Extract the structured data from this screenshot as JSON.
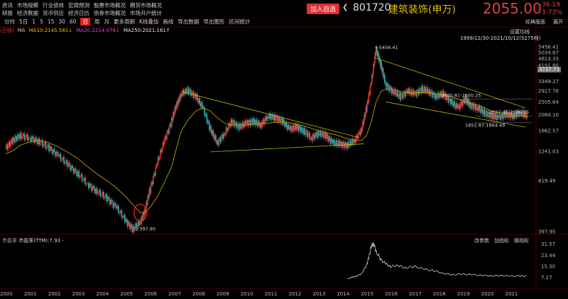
{
  "nav": {
    "row1": [
      "资讯",
      "市场规模",
      "行业绩效",
      "宏观预测",
      "股票市场概况",
      "期货市场概况"
    ],
    "row2": [
      "研报",
      "经济数据",
      "货币供应",
      "经济日历",
      "债券市场概况",
      "市场开户统计"
    ]
  },
  "toolbar": {
    "items": [
      "分时",
      "5日",
      "1",
      "5",
      "15",
      "30",
      "60",
      "日",
      "周",
      "月",
      "更多周期",
      "K线叠加",
      "画线",
      "导出数据",
      "导出图形",
      "区间统计"
    ],
    "selected": "日",
    "right": [
      "经典版面",
      "展开"
    ]
  },
  "header": {
    "add_label": "加入自选",
    "code": "801720",
    "name": "建筑装饰(申万)",
    "price": "2055.00",
    "change": "-36.19",
    "change_pct": "-1.73%",
    "arrow": "❮"
  },
  "ma": {
    "period_label": "(日线)",
    "ma": "MA",
    "ma10": "MA10:2145.581↓",
    "ma20": "MA20:2214.978↓",
    "ma250": "MA250:2021.161↑"
  },
  "panel": {
    "settings": "设置均线",
    "range": "1999/12/30-2021/10/12(5275根)",
    "current_tag": "3737.73",
    "sub_label": "市盈率",
    "sub_value": "市盈率(TTM):7.93 -",
    "sub_right": [
      "改参数",
      "加指标",
      "换指标"
    ]
  },
  "colors": {
    "up": "#e03030",
    "down": "#20b0b0",
    "ma_up": "#e8c000",
    "ma_lower": "#b8a000",
    "accent": "#e03030"
  },
  "chart_data": [
    {
      "type": "candlestick",
      "title": "801720 建筑装饰(申万)",
      "x_ticks": [
        "2000",
        "2001",
        "2002",
        "2003",
        "2004",
        "2005",
        "2006",
        "2007",
        "2008",
        "2009",
        "2010",
        "2011",
        "2012",
        "2013",
        "2014",
        "2015",
        "2016",
        "2017",
        "2018",
        "2019",
        "2020",
        "2021"
      ],
      "y_ticks": [
        5456.41,
        5034.87,
        4613.33,
        4191.8,
        3349.27,
        2927.78,
        2505.64,
        2084.1,
        1662.57,
        1241.03,
        819.49,
        397.95
      ],
      "ylim": [
        397.95,
        5456.41
      ],
      "x": [
        2000.0,
        2000.3,
        2000.6,
        2001.0,
        2001.4,
        2001.8,
        2002.2,
        2002.6,
        2003.0,
        2003.4,
        2003.8,
        2004.2,
        2004.6,
        2005.0,
        2005.3,
        2005.6,
        2005.8,
        2006.0,
        2006.3,
        2006.6,
        2006.9,
        2007.1,
        2007.3,
        2007.6,
        2007.9,
        2008.2,
        2008.5,
        2008.8,
        2009.1,
        2009.4,
        2009.7,
        2010.0,
        2010.3,
        2010.6,
        2010.9,
        2011.2,
        2011.5,
        2011.8,
        2012.1,
        2012.4,
        2012.7,
        2013.0,
        2013.3,
        2013.6,
        2013.9,
        2014.2,
        2014.5,
        2014.8,
        2015.0,
        2015.2,
        2015.4,
        2015.6,
        2015.8,
        2016.1,
        2016.4,
        2016.7,
        2017.0,
        2017.3,
        2017.6,
        2017.9,
        2018.2,
        2018.5,
        2018.8,
        2019.1,
        2019.3,
        2019.6,
        2019.9,
        2020.2,
        2020.5,
        2020.8,
        2021.1,
        2021.4,
        2021.7
      ],
      "close": [
        1300,
        1450,
        1550,
        1500,
        1420,
        1300,
        1160,
        1020,
        900,
        780,
        700,
        640,
        560,
        460,
        410,
        460,
        540,
        720,
        1050,
        1450,
        1900,
        2400,
        2800,
        2950,
        2700,
        2300,
        1700,
        1400,
        1600,
        1900,
        1750,
        1850,
        1900,
        1800,
        2050,
        2000,
        1900,
        1700,
        1750,
        1650,
        1500,
        1600,
        1550,
        1400,
        1380,
        1350,
        1450,
        1700,
        2300,
        3300,
        5300,
        4200,
        3200,
        2900,
        2700,
        2900,
        2800,
        3000,
        2900,
        2700,
        2800,
        2500,
        2300,
        2600,
        2400,
        2300,
        2150,
        2050,
        2000,
        2100,
        2050,
        2150,
        2055
      ],
      "ma250": [
        1200,
        1250,
        1350,
        1420,
        1450,
        1400,
        1320,
        1220,
        1120,
        1000,
        900,
        820,
        740,
        650,
        580,
        520,
        520,
        560,
        650,
        800,
        1000,
        1300,
        1650,
        1950,
        2200,
        2300,
        2200,
        2000,
        1850,
        1800,
        1800,
        1800,
        1820,
        1830,
        1850,
        1870,
        1880,
        1860,
        1820,
        1780,
        1720,
        1660,
        1620,
        1580,
        1540,
        1480,
        1450,
        1450,
        1550,
        1900,
        2500,
        2900,
        3000,
        3000,
        2900,
        2850,
        2850,
        2850,
        2850,
        2800,
        2750,
        2700,
        2600,
        2500,
        2450,
        2400,
        2300,
        2200,
        2150,
        2100,
        2080,
        2050,
        2021
      ],
      "annotations": [
        "5456.41",
        "397.95",
        "2600.81-2600.25",
        "2027.41-2086.35",
        "1852.87-1864.49"
      ]
    },
    {
      "type": "area",
      "title": "市盈率(TTM)",
      "y_ticks": [
        31.57,
        23.44,
        15.3,
        7.17
      ],
      "ylim": [
        0,
        33
      ],
      "x": [
        2014.2,
        2014.4,
        2014.6,
        2014.8,
        2015.0,
        2015.1,
        2015.2,
        2015.3,
        2015.4,
        2015.6,
        2015.8,
        2016.0,
        2016.3,
        2016.6,
        2017.0,
        2017.4,
        2017.8,
        2018.2,
        2018.6,
        2019.0,
        2019.4,
        2019.8,
        2020.2,
        2020.6,
        2021.0,
        2021.4,
        2021.7
      ],
      "values": [
        6,
        7,
        8,
        10,
        16,
        22,
        30,
        32,
        26,
        20,
        17,
        15,
        16,
        14,
        15,
        13,
        12,
        10,
        9,
        9.5,
        9,
        8.5,
        8.2,
        8.4,
        8,
        8.1,
        7.93
      ]
    }
  ]
}
